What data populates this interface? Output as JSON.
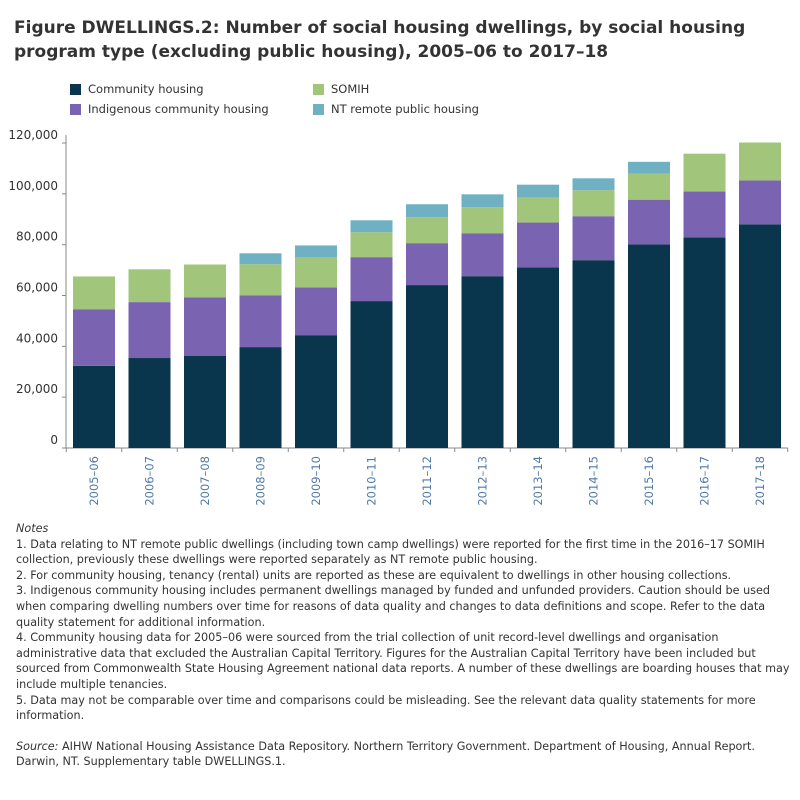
{
  "title": "Figure DWELLINGS.2: Number of social housing dwellings, by social housing program type (excluding public housing), 2005–06 to 2017–18",
  "chart_data": {
    "type": "bar",
    "stacked": true,
    "title": "Figure DWELLINGS.2: Number of social housing dwellings, by social housing program type (excluding public housing), 2005–06 to 2017–18",
    "xlabel": "",
    "ylabel": "",
    "ylim": [
      0,
      120000
    ],
    "yticks": [
      0,
      20000,
      40000,
      60000,
      80000,
      100000,
      120000
    ],
    "ytick_labels": [
      "0",
      "20,000",
      "40,000",
      "60,000",
      "80,000",
      "100,000",
      "120,000"
    ],
    "grid": false,
    "legend_position": "top",
    "categories": [
      "2005–06",
      "2006–07",
      "2007–08",
      "2008–09",
      "2009–10",
      "2010–11",
      "2011–12",
      "2012–13",
      "2013–14",
      "2014–15",
      "2015–16",
      "2016–17",
      "2017–18"
    ],
    "series": [
      {
        "name": "Community housing",
        "color": "#09364c",
        "values": [
          32300,
          35400,
          36200,
          39700,
          44400,
          57800,
          64100,
          67600,
          71100,
          73900,
          80100,
          82900,
          88000
        ]
      },
      {
        "name": "Indigenous community housing",
        "color": "#7a63b0",
        "values": [
          22300,
          22000,
          23100,
          20400,
          18800,
          17300,
          16500,
          16900,
          17600,
          17300,
          17600,
          18000,
          17300
        ]
      },
      {
        "name": "SOMIH",
        "color": "#a1c67b",
        "values": [
          12900,
          12900,
          12900,
          12200,
          11800,
          9800,
          10200,
          10200,
          9800,
          10200,
          10200,
          14900,
          14900
        ]
      },
      {
        "name": "NT remote public housing",
        "color": "#6fb0c3",
        "values": [
          0,
          0,
          0,
          4300,
          4700,
          4700,
          5100,
          5100,
          5100,
          4700,
          4700,
          0,
          0
        ]
      }
    ]
  },
  "legend_layout": [
    0,
    2,
    1,
    3
  ],
  "notes": {
    "heading": "Notes",
    "items": [
      "1. Data relating to NT remote public dwellings (including town camp dwellings) were reported for the first time in the 2016–17 SOMIH collection, previously these dwellings were reported separately as NT remote public housing.",
      "2. For community housing, tenancy (rental) units are reported as these are equivalent to dwellings in other housing collections.",
      "3. Indigenous community housing includes permanent dwellings managed by funded and unfunded providers. Caution should be used when comparing dwelling numbers over time for reasons of data quality and changes to data definitions and scope. Refer to the data quality statement for additional information.",
      "4. Community housing data for 2005–06 were sourced from the trial collection of unit record-level dwellings and organisation administrative data that excluded the Australian Capital Territory. Figures for the Australian Capital Territory have been included but sourced from Commonwealth State Housing Agreement national data reports. A number of these dwellings are boarding houses that may include multiple tenancies.",
      "5. Data may not be comparable over time and comparisons could be misleading. See the relevant data quality statements for more information."
    ]
  },
  "source": {
    "label": "Source:",
    "text": " AIHW National Housing Assistance Data Repository. Northern Territory Government. Department of Housing, Annual Report. Darwin, NT. Supplementary table DWELLINGS.1."
  },
  "colors": {
    "axis": "#888888",
    "x_tick_label": "#4e79a7",
    "text": "#333333"
  }
}
